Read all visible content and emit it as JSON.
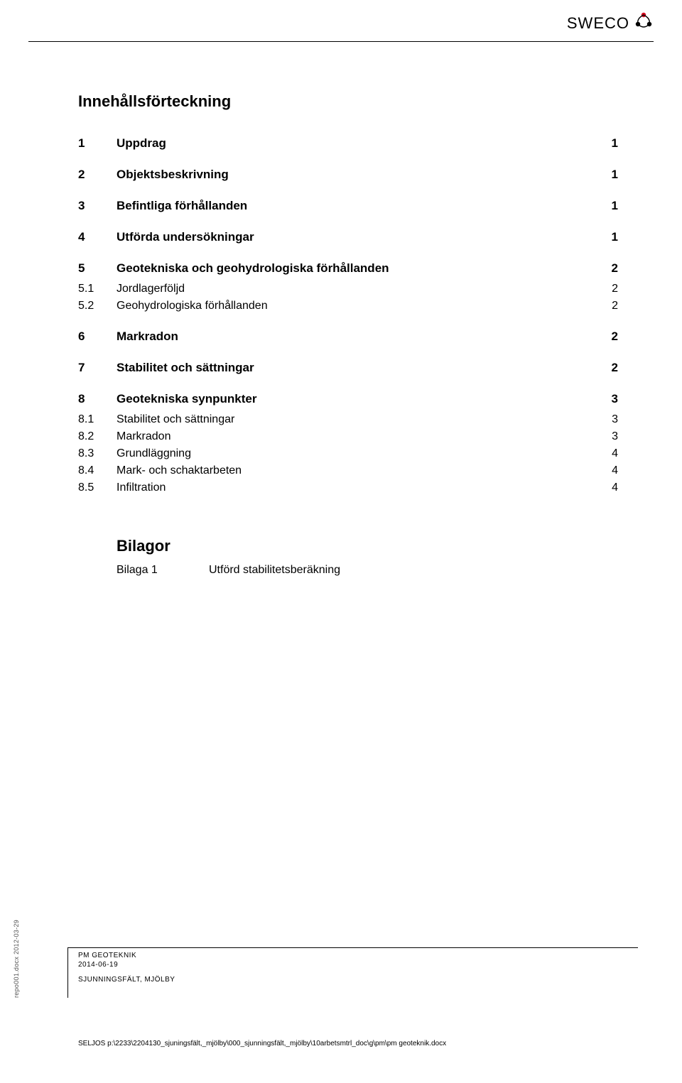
{
  "header": {
    "logo_text": "SWECO",
    "logo_icon_colors": {
      "top": "#d6001c",
      "left": "#000000",
      "right": "#000000"
    }
  },
  "title": "Innehållsförteckning",
  "toc": [
    {
      "level": 1,
      "num": "1",
      "label": "Uppdrag",
      "page": "1"
    },
    {
      "level": 1,
      "num": "2",
      "label": "Objektsbeskrivning",
      "page": "1"
    },
    {
      "level": 1,
      "num": "3",
      "label": "Befintliga förhållanden",
      "page": "1"
    },
    {
      "level": 1,
      "num": "4",
      "label": "Utförda undersökningar",
      "page": "1"
    },
    {
      "level": 1,
      "num": "5",
      "label": "Geotekniska och geohydrologiska förhållanden",
      "page": "2"
    },
    {
      "level": 2,
      "num": "5.1",
      "label": "Jordlagerföljd",
      "page": "2"
    },
    {
      "level": 2,
      "num": "5.2",
      "label": "Geohydrologiska förhållanden",
      "page": "2"
    },
    {
      "level": 1,
      "num": "6",
      "label": "Markradon",
      "page": "2"
    },
    {
      "level": 1,
      "num": "7",
      "label": "Stabilitet och sättningar",
      "page": "2"
    },
    {
      "level": 1,
      "num": "8",
      "label": "Geotekniska synpunkter",
      "page": "3"
    },
    {
      "level": 2,
      "num": "8.1",
      "label": "Stabilitet och sättningar",
      "page": "3"
    },
    {
      "level": 2,
      "num": "8.2",
      "label": "Markradon",
      "page": "3"
    },
    {
      "level": 2,
      "num": "8.3",
      "label": "Grundläggning",
      "page": "4"
    },
    {
      "level": 2,
      "num": "8.4",
      "label": "Mark- och schaktarbeten",
      "page": "4"
    },
    {
      "level": 2,
      "num": "8.5",
      "label": "Infiltration",
      "page": "4"
    }
  ],
  "attachments": {
    "title": "Bilagor",
    "items": [
      {
        "key": "Bilaga 1",
        "value": "Utförd stabilitetsberäkning"
      }
    ]
  },
  "footer": {
    "line1": "PM GEOTEKNIK",
    "line2": "2014-06-19",
    "line3": "SJUNNINGSFÄLT, MJÖLBY",
    "path": "SELJOS p:\\2233\\2204130_sjuningsfält,_mjölby\\000_sjunningsfält,_mjölby\\10arbetsmtrl_doc\\g\\pm\\pm geoteknik.docx",
    "side_text": "repo001.docx 2012-03-29"
  },
  "colors": {
    "text": "#000000",
    "background": "#ffffff",
    "rule": "#000000"
  }
}
